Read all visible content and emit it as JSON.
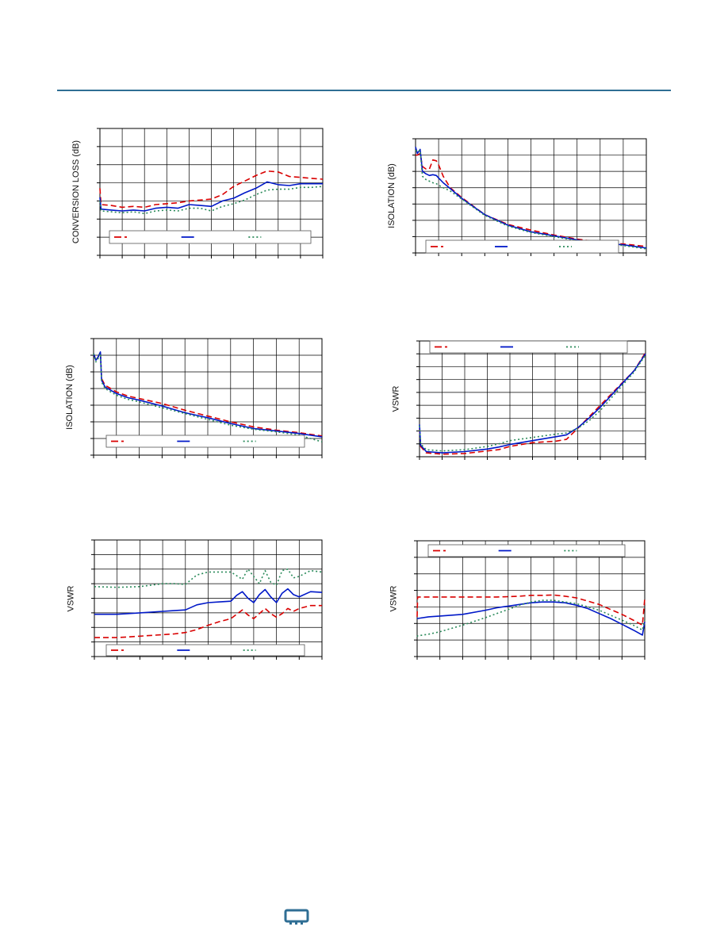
{
  "page": {
    "brand_color": "#2f6e94",
    "footer_logo_icon": "company-logo-icon"
  },
  "series_styles": [
    {
      "color": "#d90000",
      "dash": "dashed"
    },
    {
      "color": "#0018c8",
      "dash": "solid"
    },
    {
      "color": "#2a8a5a",
      "dash": "dotted"
    }
  ],
  "chart_data": [
    {
      "type": "line",
      "ylabel": "CONVERSION LOSS (dB)",
      "xlim": [
        0,
        10
      ],
      "ylim": [
        0,
        7
      ],
      "grid": true,
      "legend_position": "bottom",
      "series": [
        {
          "x": [
            0,
            0.05,
            0.5,
            1,
            1.5,
            2,
            2.5,
            3,
            3.5,
            4,
            4.5,
            5,
            5.5,
            6,
            6.5,
            7,
            7.5,
            8,
            8.5,
            9,
            9.5,
            10
          ],
          "y": [
            3.7,
            2.8,
            2.75,
            2.65,
            2.7,
            2.65,
            2.8,
            2.85,
            2.9,
            3.0,
            3.05,
            3.1,
            3.35,
            3.8,
            4.1,
            4.4,
            4.65,
            4.6,
            4.35,
            4.3,
            4.25,
            4.2
          ]
        },
        {
          "x": [
            0,
            0.05,
            0.5,
            1,
            1.5,
            2,
            2.5,
            3,
            3.5,
            4,
            4.5,
            5,
            5.5,
            6,
            6.5,
            7,
            7.5,
            8,
            8.5,
            9,
            9.5,
            10
          ],
          "y": [
            3.2,
            2.55,
            2.5,
            2.45,
            2.5,
            2.45,
            2.6,
            2.65,
            2.6,
            2.8,
            2.75,
            2.7,
            3.0,
            3.15,
            3.45,
            3.7,
            4.05,
            3.9,
            3.85,
            3.95,
            3.95,
            3.95
          ]
        },
        {
          "x": [
            0,
            0.05,
            0.5,
            1,
            1.5,
            2,
            2.5,
            3,
            3.5,
            4,
            4.5,
            5,
            5.5,
            6,
            6.5,
            7,
            7.5,
            8,
            8.5,
            9,
            9.5,
            10
          ],
          "y": [
            3.0,
            2.45,
            2.4,
            2.35,
            2.4,
            2.3,
            2.45,
            2.5,
            2.45,
            2.6,
            2.6,
            2.45,
            2.7,
            2.85,
            3.05,
            3.35,
            3.6,
            3.65,
            3.65,
            3.75,
            3.75,
            3.8
          ]
        }
      ]
    },
    {
      "type": "line",
      "ylabel": "ISOLATION (dB)",
      "xlim": [
        0,
        10
      ],
      "ylim": [
        0,
        7
      ],
      "grid": true,
      "legend_position": "bottom",
      "series": [
        {
          "x": [
            0,
            0.08,
            0.2,
            0.3,
            0.45,
            0.6,
            0.75,
            0.9,
            1.0,
            1.2,
            1.5,
            2,
            3,
            4,
            5,
            6,
            7,
            8,
            9,
            10
          ],
          "y": [
            6.0,
            6.0,
            6.1,
            5.3,
            5.15,
            5.15,
            5.7,
            5.65,
            5.4,
            4.7,
            4.0,
            3.4,
            2.35,
            1.75,
            1.4,
            1.1,
            0.85,
            0.65,
            0.55,
            0.4
          ]
        },
        {
          "x": [
            0,
            0.08,
            0.2,
            0.3,
            0.45,
            0.6,
            0.75,
            0.9,
            1.0,
            1.2,
            1.5,
            2,
            3,
            4,
            5,
            6,
            7,
            8,
            9,
            10
          ],
          "y": [
            6.5,
            6.1,
            6.35,
            5.0,
            4.85,
            4.75,
            4.8,
            4.75,
            4.6,
            4.3,
            3.95,
            3.35,
            2.35,
            1.7,
            1.3,
            1.05,
            0.8,
            0.6,
            0.5,
            0.3
          ]
        },
        {
          "x": [
            0,
            0.08,
            0.2,
            0.3,
            0.45,
            0.6,
            0.75,
            0.9,
            1.0,
            1.2,
            1.5,
            2,
            3,
            4,
            5,
            6,
            7,
            8,
            9,
            10
          ],
          "y": [
            6.3,
            6.2,
            6.3,
            4.7,
            4.5,
            4.4,
            4.3,
            4.25,
            4.15,
            4.0,
            3.8,
            3.3,
            2.3,
            1.65,
            1.25,
            1.0,
            0.75,
            0.55,
            0.45,
            0.25
          ]
        }
      ]
    },
    {
      "type": "line",
      "ylabel": "ISOLATION (dB)",
      "xlim": [
        0,
        10
      ],
      "ylim": [
        0,
        7
      ],
      "grid": true,
      "legend_position": "bottom",
      "series": [
        {
          "x": [
            0,
            0.1,
            0.2,
            0.3,
            0.35,
            0.5,
            1,
            1.5,
            2,
            3,
            4,
            5,
            6,
            7,
            8,
            9,
            10
          ],
          "y": [
            6.1,
            5.7,
            5.9,
            6.2,
            4.6,
            4.2,
            3.8,
            3.55,
            3.4,
            3.1,
            2.7,
            2.35,
            2.0,
            1.7,
            1.5,
            1.35,
            1.15
          ]
        },
        {
          "x": [
            0,
            0.1,
            0.2,
            0.3,
            0.35,
            0.5,
            1,
            1.5,
            2,
            3,
            4,
            5,
            6,
            7,
            8,
            9,
            10
          ],
          "y": [
            6.1,
            5.7,
            5.9,
            6.2,
            4.5,
            4.1,
            3.7,
            3.45,
            3.3,
            2.95,
            2.55,
            2.25,
            1.9,
            1.6,
            1.45,
            1.3,
            1.1
          ]
        },
        {
          "x": [
            0,
            0.1,
            0.2,
            0.3,
            0.35,
            0.5,
            1,
            1.5,
            2,
            3,
            4,
            5,
            6,
            7,
            8,
            9,
            10
          ],
          "y": [
            6.1,
            5.6,
            5.8,
            6.1,
            4.4,
            4.0,
            3.6,
            3.35,
            3.2,
            2.85,
            2.5,
            2.15,
            1.8,
            1.55,
            1.4,
            1.2,
            0.8
          ]
        }
      ]
    },
    {
      "type": "line",
      "ylabel": "VSWR",
      "xlim": [
        0,
        10
      ],
      "ylim": [
        0,
        9
      ],
      "grid": true,
      "legend_position": "top",
      "series": [
        {
          "x": [
            0,
            0.05,
            0.3,
            1,
            2,
            3,
            3.5,
            4,
            5,
            6,
            6.5,
            7,
            7.5,
            8,
            8.5,
            9,
            9.5,
            10
          ],
          "y": [
            2.2,
            0.8,
            0.3,
            0.2,
            0.25,
            0.45,
            0.55,
            0.8,
            1.1,
            1.2,
            1.35,
            2.2,
            3.1,
            4.0,
            4.9,
            5.8,
            6.7,
            8.1
          ]
        },
        {
          "x": [
            0,
            0.05,
            0.3,
            1,
            2,
            3,
            3.5,
            4,
            5,
            6,
            6.5,
            7,
            7.5,
            8,
            8.5,
            9,
            9.5,
            10
          ],
          "y": [
            2.5,
            0.9,
            0.4,
            0.3,
            0.4,
            0.6,
            0.75,
            0.95,
            1.25,
            1.55,
            1.7,
            2.25,
            3.0,
            3.85,
            4.8,
            5.75,
            6.7,
            8.0
          ]
        },
        {
          "x": [
            0,
            0.05,
            0.3,
            1,
            2,
            3,
            3.5,
            4,
            5,
            6,
            6.5,
            7,
            7.5,
            8,
            8.5,
            9,
            9.5,
            10
          ],
          "y": [
            2.4,
            1.0,
            0.55,
            0.45,
            0.55,
            0.8,
            1.0,
            1.25,
            1.5,
            1.75,
            1.85,
            2.2,
            2.8,
            3.6,
            4.6,
            5.6,
            6.6,
            7.9
          ]
        }
      ]
    },
    {
      "type": "line",
      "ylabel": "VSWR",
      "xlim": [
        0,
        10
      ],
      "ylim": [
        0,
        8
      ],
      "grid": true,
      "legend_position": "bottom",
      "series": [
        {
          "x": [
            0,
            1,
            2,
            3,
            3.5,
            4,
            4.5,
            5,
            5.5,
            6,
            6.25,
            6.5,
            6.75,
            7,
            7.25,
            7.5,
            7.75,
            8,
            8.25,
            8.5,
            8.75,
            9,
            9.5,
            10
          ],
          "y": [
            1.3,
            1.3,
            1.4,
            1.5,
            1.55,
            1.65,
            1.85,
            2.15,
            2.4,
            2.6,
            2.9,
            3.2,
            2.85,
            2.6,
            2.95,
            3.3,
            2.95,
            2.7,
            2.95,
            3.3,
            3.1,
            3.3,
            3.5,
            3.5
          ]
        },
        {
          "x": [
            0,
            1,
            2,
            3,
            3.5,
            4,
            4.5,
            5,
            5.5,
            6,
            6.25,
            6.5,
            6.75,
            7,
            7.25,
            7.5,
            7.75,
            8,
            8.25,
            8.5,
            8.75,
            9,
            9.5,
            10
          ],
          "y": [
            2.9,
            2.9,
            3.0,
            3.1,
            3.15,
            3.2,
            3.55,
            3.7,
            3.75,
            3.8,
            4.2,
            4.45,
            4.0,
            3.7,
            4.25,
            4.6,
            4.1,
            3.7,
            4.35,
            4.65,
            4.25,
            4.1,
            4.45,
            4.4
          ]
        },
        {
          "x": [
            0,
            1,
            2,
            3,
            3.5,
            4,
            4.5,
            5,
            5.5,
            6,
            6.25,
            6.5,
            6.75,
            7,
            7.25,
            7.5,
            7.75,
            8,
            8.25,
            8.5,
            8.75,
            9,
            9.5,
            10
          ],
          "y": [
            4.8,
            4.75,
            4.8,
            5.0,
            5.0,
            4.95,
            5.6,
            5.8,
            5.8,
            5.8,
            5.55,
            5.3,
            6.0,
            5.5,
            5.0,
            5.9,
            5.1,
            4.9,
            5.9,
            6.0,
            5.4,
            5.5,
            5.9,
            5.8
          ]
        }
      ]
    },
    {
      "type": "line",
      "ylabel": "VSWR",
      "xlim": [
        0,
        10
      ],
      "ylim": [
        0,
        7
      ],
      "grid": true,
      "legend_position": "top",
      "series": [
        {
          "x": [
            0,
            0.02,
            0.5,
            1,
            2,
            3,
            3.5,
            4,
            4.5,
            5,
            5.5,
            6,
            6.5,
            7,
            7.5,
            8,
            8.5,
            9,
            9.5,
            9.9,
            10
          ],
          "y": [
            2.4,
            3.6,
            3.6,
            3.6,
            3.6,
            3.6,
            3.6,
            3.62,
            3.65,
            3.7,
            3.7,
            3.72,
            3.65,
            3.55,
            3.35,
            3.15,
            2.85,
            2.55,
            2.2,
            1.9,
            3.5
          ]
        },
        {
          "x": [
            0,
            0.02,
            0.5,
            1,
            2,
            3,
            3.5,
            4,
            4.5,
            5,
            5.5,
            6,
            6.5,
            7,
            7.5,
            8,
            8.5,
            9,
            9.5,
            9.9,
            10
          ],
          "y": [
            2.3,
            2.3,
            2.4,
            2.45,
            2.55,
            2.8,
            2.95,
            3.05,
            3.15,
            3.25,
            3.3,
            3.3,
            3.25,
            3.1,
            2.9,
            2.6,
            2.3,
            1.95,
            1.6,
            1.3,
            2.1
          ]
        },
        {
          "x": [
            0,
            0.02,
            0.5,
            1,
            2,
            3,
            3.5,
            4,
            4.5,
            5,
            5.5,
            6,
            6.5,
            7,
            7.5,
            8,
            8.5,
            9,
            9.5,
            9.9,
            10
          ],
          "y": [
            1.2,
            1.25,
            1.35,
            1.5,
            1.9,
            2.35,
            2.6,
            2.85,
            3.1,
            3.3,
            3.4,
            3.4,
            3.3,
            3.2,
            3.0,
            2.8,
            2.5,
            2.2,
            1.9,
            1.6,
            2.2
          ]
        }
      ]
    }
  ]
}
